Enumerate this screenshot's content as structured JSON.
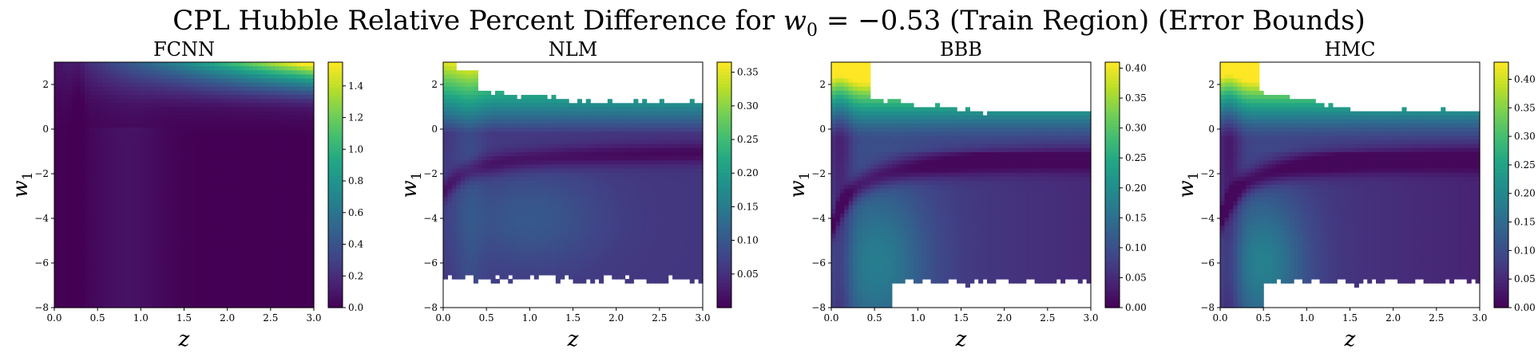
{
  "suptitle": {
    "prefix": "CPL Hubble Relative Percent Difference for ",
    "symbol": "w",
    "subscript": "0",
    "suffix": " = −0.53 (Train Region) (Error Bounds)"
  },
  "chart_data": [
    {
      "type": "heatmap",
      "title": "FCNN",
      "xlabel": "z",
      "ylabel": "w",
      "ylabel_subscript": "1",
      "xlim": [
        0.0,
        3.0
      ],
      "ylim": [
        -8,
        3
      ],
      "xticks": [
        "0.0",
        "0.5",
        "1.0",
        "1.5",
        "2.0",
        "2.5",
        "3.0"
      ],
      "yticks": [
        "2",
        "0",
        "−2",
        "−4",
        "−6",
        "−8"
      ],
      "colorbar": {
        "min": 0.0,
        "max": 1.55,
        "ticks": [
          "0.0",
          "0.2",
          "0.4",
          "0.6",
          "0.8",
          "1.0",
          "1.2",
          "1.4"
        ],
        "colormap": "viridis"
      },
      "grid": false,
      "model": "fcnn"
    },
    {
      "type": "heatmap",
      "title": "NLM",
      "xlabel": "z",
      "ylabel": "w",
      "ylabel_subscript": "1",
      "xlim": [
        0.0,
        3.0
      ],
      "ylim": [
        -8,
        3
      ],
      "xticks": [
        "0.0",
        "0.5",
        "1.0",
        "1.5",
        "2.0",
        "2.5",
        "3.0"
      ],
      "yticks": [
        "2",
        "0",
        "−2",
        "−4",
        "−6",
        "−8"
      ],
      "colorbar": {
        "min": 0.0,
        "max": 0.365,
        "ticks": [
          "0.05",
          "0.10",
          "0.15",
          "0.20",
          "0.25",
          "0.30",
          "0.35"
        ],
        "colormap": "viridis"
      },
      "grid": false,
      "model": "nlm"
    },
    {
      "type": "heatmap",
      "title": "BBB",
      "xlabel": "z",
      "ylabel": "w",
      "ylabel_subscript": "1",
      "xlim": [
        0.0,
        3.0
      ],
      "ylim": [
        -8,
        3
      ],
      "xticks": [
        "0.0",
        "0.5",
        "1.0",
        "1.5",
        "2.0",
        "2.5",
        "3.0"
      ],
      "yticks": [
        "2",
        "0",
        "−2",
        "−4",
        "−6",
        "−8"
      ],
      "colorbar": {
        "min": 0.0,
        "max": 0.41,
        "ticks": [
          "0.00",
          "0.05",
          "0.10",
          "0.15",
          "0.20",
          "0.25",
          "0.30",
          "0.35",
          "0.40"
        ],
        "colormap": "viridis"
      },
      "grid": false,
      "model": "bbb"
    },
    {
      "type": "heatmap",
      "title": "HMC",
      "xlabel": "z",
      "ylabel": "w",
      "ylabel_subscript": "1",
      "xlim": [
        0.0,
        3.0
      ],
      "ylim": [
        -8,
        3
      ],
      "xticks": [
        "0.0",
        "0.5",
        "1.0",
        "1.5",
        "2.0",
        "2.5",
        "3.0"
      ],
      "yticks": [
        "2",
        "0",
        "−2",
        "−4",
        "−6",
        "−8"
      ],
      "colorbar": {
        "min": 0.0,
        "max": 0.43,
        "ticks": [
          "0.00",
          "0.05",
          "0.10",
          "0.15",
          "0.20",
          "0.25",
          "0.30",
          "0.35",
          "0.40"
        ],
        "colormap": "viridis"
      },
      "grid": false,
      "model": "hmc"
    }
  ]
}
